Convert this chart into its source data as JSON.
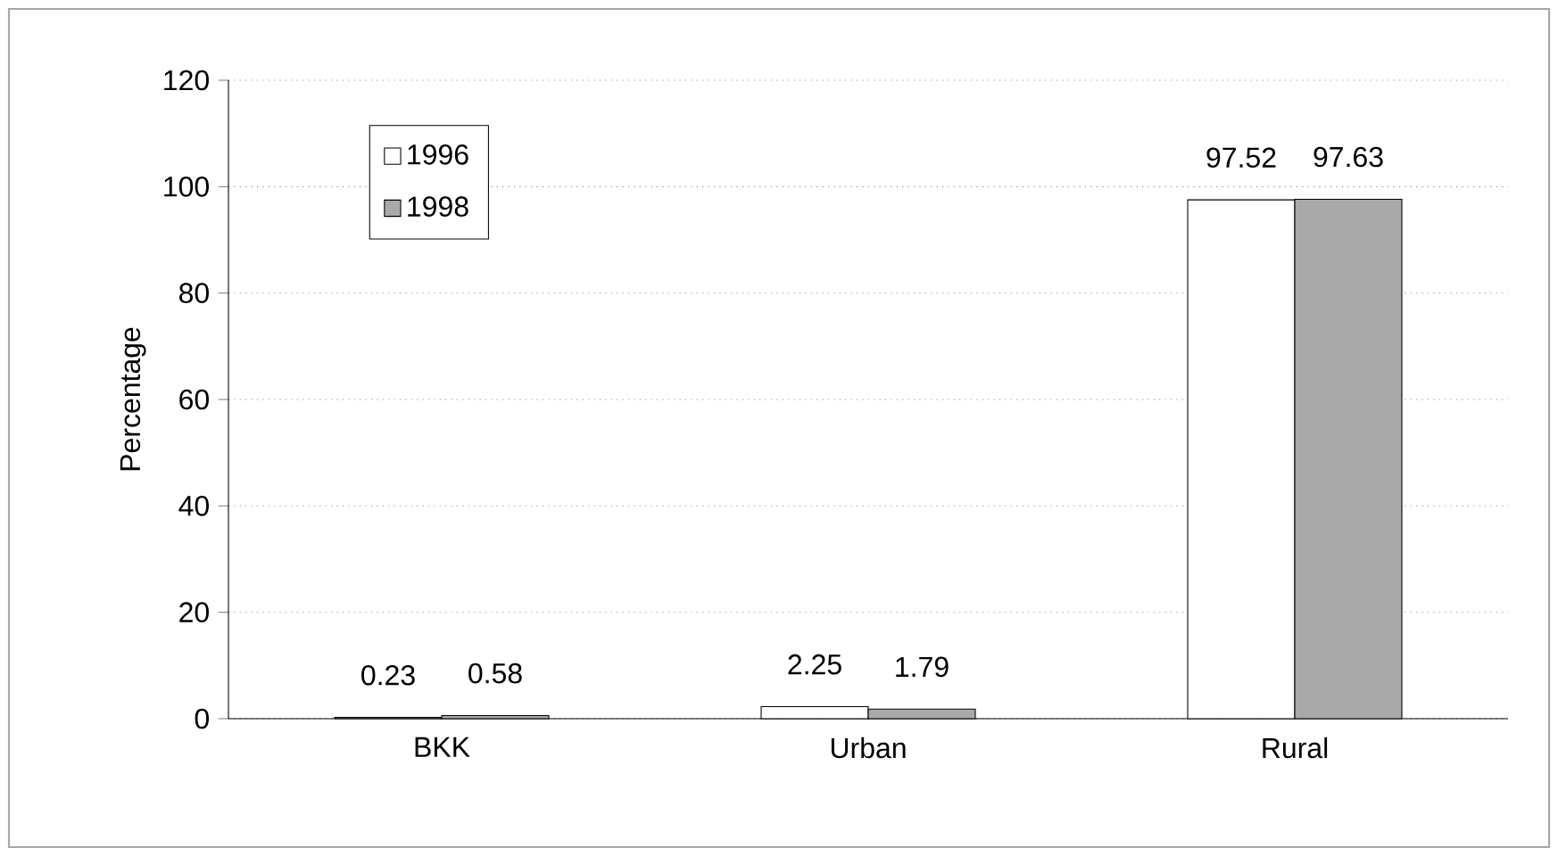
{
  "chart_data": {
    "type": "bar",
    "ylabel": "Percentage",
    "categories": [
      "BKK",
      "Urban",
      "Rural"
    ],
    "series": [
      {
        "name": "1996",
        "color": "#ffffff",
        "values": [
          0.23,
          2.25,
          97.52
        ]
      },
      {
        "name": "1998",
        "color": "#a9a9a9",
        "values": [
          0.58,
          1.79,
          97.63
        ]
      }
    ],
    "ylim": [
      0,
      120
    ],
    "yticks": [
      0,
      20,
      40,
      60,
      80,
      100,
      120
    ],
    "grid": "y",
    "legend": "top left",
    "data_labels": true
  }
}
